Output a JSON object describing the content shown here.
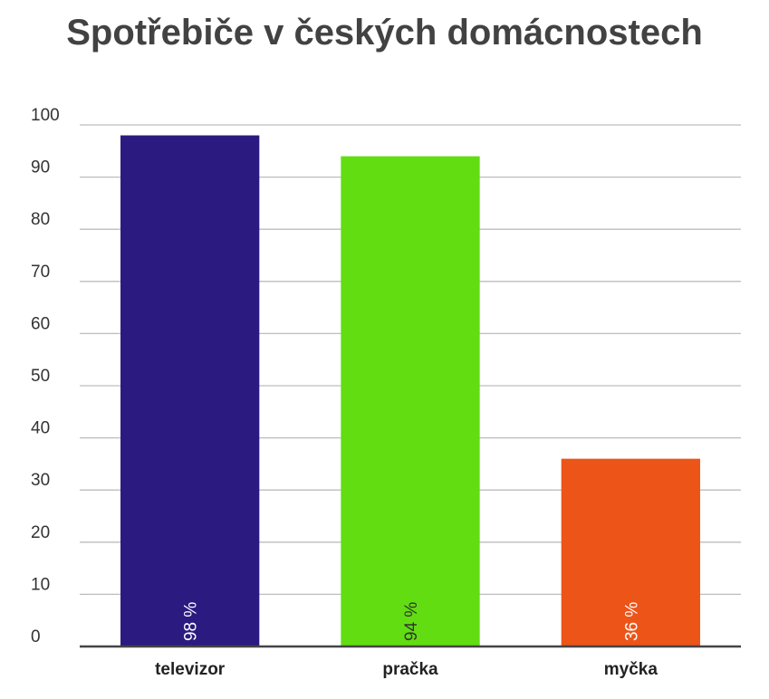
{
  "chart_data": {
    "type": "bar",
    "title": "Spotřebiče v českých domácnostech",
    "categories": [
      "televizor",
      "pračka",
      "myčka"
    ],
    "values": [
      98,
      94,
      36
    ],
    "data_labels": [
      "98 %",
      "94 %",
      "36 %"
    ],
    "colors": [
      "#2b1a80",
      "#62dd12",
      "#ec5418"
    ],
    "label_colors": [
      "#ffffff",
      "#333333",
      "#ffffff"
    ],
    "ylim": [
      0,
      100
    ],
    "yticks": [
      0,
      10,
      20,
      30,
      40,
      50,
      60,
      70,
      80,
      90,
      100
    ],
    "xlabel": "",
    "ylabel": "",
    "grid": true,
    "legend": "none"
  }
}
